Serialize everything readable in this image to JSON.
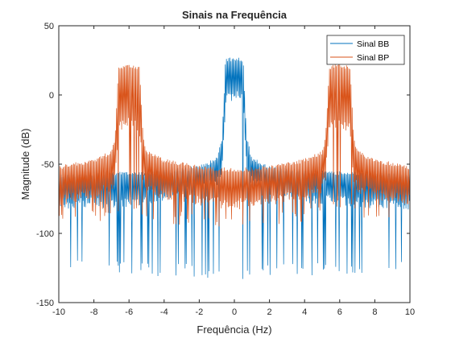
{
  "chart_data": {
    "type": "line",
    "title": "Sinais na Frequência",
    "xlabel": "Frequência (Hz)",
    "ylabel": "Magnitude (dB)",
    "xlim": [
      -10,
      10
    ],
    "ylim": [
      -150,
      50
    ],
    "xticks": [
      -10,
      -8,
      -6,
      -4,
      -2,
      0,
      2,
      4,
      6,
      8,
      10
    ],
    "yticks": [
      -150,
      -100,
      -50,
      0,
      50
    ],
    "grid": false,
    "legend_position": "top-right",
    "series": [
      {
        "name": "Sinal BB",
        "color": "#0072BD",
        "envelope_x": [
          -10,
          -8,
          -6,
          -4,
          -2,
          -1,
          -0.7,
          -0.5,
          0,
          0.5,
          0.7,
          1,
          2,
          4,
          6,
          8,
          10
        ],
        "envelope_upper": [
          -57,
          -56,
          -55,
          -54,
          -51,
          -45,
          -30,
          27,
          27,
          27,
          -30,
          -45,
          -51,
          -54,
          -55,
          -56,
          -57
        ],
        "envelope_inner": [
          -75,
          -74,
          -73,
          -70,
          -64,
          -58,
          -50,
          0,
          5,
          0,
          -50,
          -58,
          -64,
          -70,
          -73,
          -74,
          -75
        ],
        "envelope_lower": [
          -125,
          -128,
          -130,
          -132,
          -132,
          -133,
          -133,
          -133,
          -133,
          -133,
          -133,
          -133,
          -132,
          -132,
          -130,
          -128,
          -125
        ]
      },
      {
        "name": "Sinal BP",
        "color": "#D95319",
        "envelope_x": [
          -10,
          -8,
          -7,
          -6.8,
          -6.6,
          -6,
          -5.4,
          -5.2,
          -5,
          -4,
          -2,
          0,
          2,
          4,
          5,
          5.2,
          5.4,
          6,
          6.6,
          6.8,
          7,
          8,
          10
        ],
        "envelope_upper": [
          -51,
          -46,
          -40,
          -30,
          21,
          23,
          21,
          -30,
          -40,
          -46,
          -51,
          -53,
          -51,
          -46,
          -40,
          -30,
          21,
          23,
          21,
          -30,
          -40,
          -46,
          -51
        ],
        "envelope_inner": [
          -72,
          -68,
          -63,
          -55,
          -20,
          -15,
          -20,
          -55,
          -63,
          -68,
          -72,
          -75,
          -72,
          -68,
          -63,
          -55,
          -20,
          -15,
          -20,
          -55,
          -63,
          -68,
          -72
        ],
        "envelope_lower": [
          -95,
          -93,
          -90,
          -88,
          -85,
          -85,
          -85,
          -88,
          -90,
          -93,
          -95,
          -97,
          -95,
          -93,
          -90,
          -88,
          -85,
          -85,
          -85,
          -88,
          -90,
          -93,
          -95
        ]
      }
    ]
  }
}
